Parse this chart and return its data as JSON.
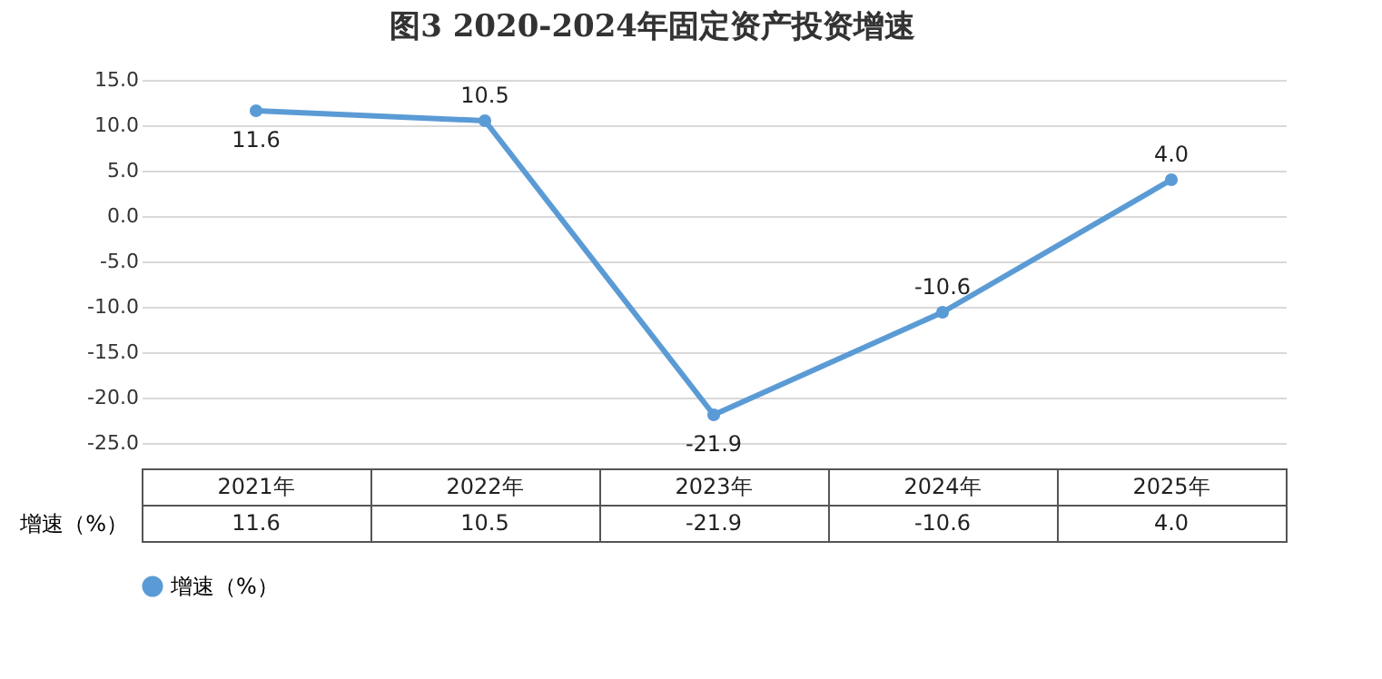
{
  "chart_data": {
    "type": "line",
    "title": "图3  2020-2024年固定资产投资增速",
    "categories": [
      "2021年",
      "2022年",
      "2023年",
      "2024年",
      "2025年"
    ],
    "series": [
      {
        "name": "增速（%）",
        "color": "#5b9bd5",
        "values": [
          11.6,
          10.5,
          -21.9,
          -10.6,
          4.0
        ],
        "value_labels": [
          "11.6",
          "10.5",
          "-21.9",
          "-10.6",
          "4.0"
        ]
      }
    ],
    "ylim": [
      -25,
      15
    ],
    "yticks": [
      {
        "value": -25,
        "label": "-25.0"
      },
      {
        "value": -20,
        "label": "-20.0"
      },
      {
        "value": -15,
        "label": "-15.0"
      },
      {
        "value": -10,
        "label": "-10.0"
      },
      {
        "value": -5,
        "label": "-5.0"
      },
      {
        "value": 0,
        "label": "0.0"
      },
      {
        "value": 5,
        "label": "5.0"
      },
      {
        "value": 10,
        "label": "10.0"
      },
      {
        "value": 15,
        "label": "15.0"
      }
    ],
    "grid": "y",
    "legend": "bottom",
    "marker": "circle"
  }
}
